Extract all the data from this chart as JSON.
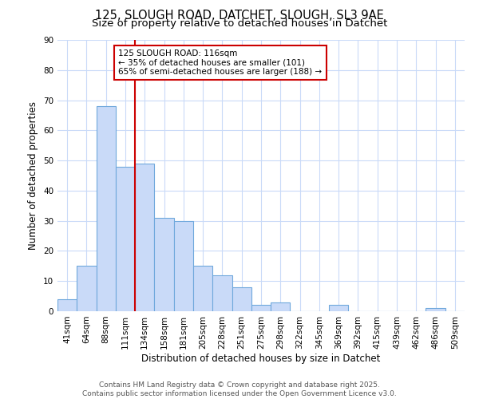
{
  "title": "125, SLOUGH ROAD, DATCHET, SLOUGH, SL3 9AE",
  "subtitle": "Size of property relative to detached houses in Datchet",
  "xlabel": "Distribution of detached houses by size in Datchet",
  "ylabel": "Number of detached properties",
  "bar_labels": [
    "41sqm",
    "64sqm",
    "88sqm",
    "111sqm",
    "134sqm",
    "158sqm",
    "181sqm",
    "205sqm",
    "228sqm",
    "251sqm",
    "275sqm",
    "298sqm",
    "322sqm",
    "345sqm",
    "369sqm",
    "392sqm",
    "415sqm",
    "439sqm",
    "462sqm",
    "486sqm",
    "509sqm"
  ],
  "bar_values": [
    4,
    15,
    68,
    48,
    49,
    31,
    30,
    15,
    12,
    8,
    2,
    3,
    0,
    0,
    2,
    0,
    0,
    0,
    0,
    1,
    0
  ],
  "bar_color": "#c9daf8",
  "bar_edge_color": "#6fa8dc",
  "ylim": [
    0,
    90
  ],
  "yticks": [
    0,
    10,
    20,
    30,
    40,
    50,
    60,
    70,
    80,
    90
  ],
  "vline_color": "#cc0000",
  "annotation_text": "125 SLOUGH ROAD: 116sqm\n← 35% of detached houses are smaller (101)\n65% of semi-detached houses are larger (188) →",
  "annotation_box_color": "#ffffff",
  "annotation_box_edge": "#cc0000",
  "footer_line1": "Contains HM Land Registry data © Crown copyright and database right 2025.",
  "footer_line2": "Contains public sector information licensed under the Open Government Licence v3.0.",
  "bg_color": "#ffffff",
  "grid_color": "#c9daf8",
  "title_fontsize": 10.5,
  "subtitle_fontsize": 9.5,
  "axis_label_fontsize": 8.5,
  "tick_fontsize": 7.5,
  "annotation_fontsize": 7.5,
  "footer_fontsize": 6.5
}
